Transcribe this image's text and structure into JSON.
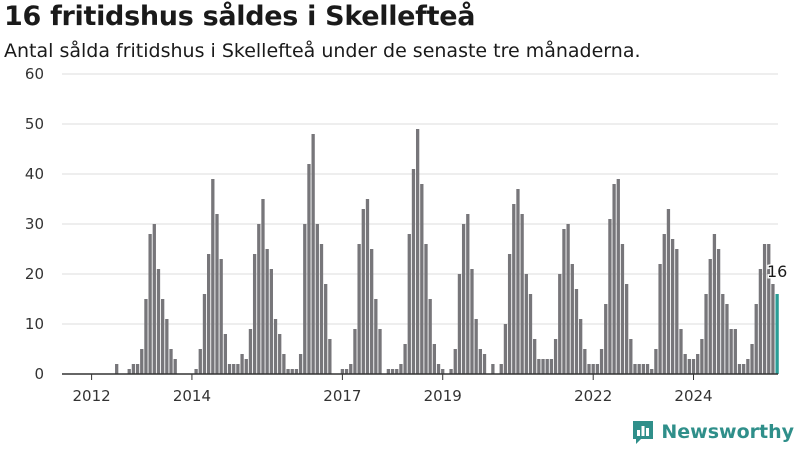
{
  "title": "16 fritidshus såldes i Skellefteå",
  "subtitle": "Antal sålda fritidshus i Skellefteå under de senaste tre månaderna.",
  "brand": {
    "name": "Newsworthy",
    "logo_icon": "bar-chart-logo-icon"
  },
  "colors": {
    "bar": "#77767a",
    "highlight": "#2a9d96",
    "brand": "#2f8f8a"
  },
  "chart_data": {
    "type": "bar",
    "x_start_month": "2012-01",
    "values": [
      0,
      0,
      0,
      0,
      0,
      0,
      2,
      0,
      0,
      1,
      2,
      2,
      5,
      15,
      28,
      30,
      21,
      15,
      11,
      5,
      3,
      0,
      0,
      0,
      0,
      1,
      5,
      16,
      24,
      39,
      32,
      23,
      8,
      2,
      2,
      2,
      4,
      3,
      9,
      24,
      30,
      35,
      25,
      21,
      11,
      8,
      4,
      1,
      1,
      1,
      4,
      30,
      42,
      48,
      30,
      26,
      18,
      7,
      0,
      0,
      1,
      1,
      2,
      9,
      26,
      33,
      35,
      25,
      15,
      9,
      0,
      1,
      1,
      1,
      2,
      6,
      28,
      41,
      49,
      38,
      26,
      15,
      6,
      2,
      1,
      0,
      1,
      5,
      20,
      30,
      32,
      21,
      11,
      5,
      4,
      0,
      2,
      0,
      2,
      10,
      24,
      34,
      37,
      32,
      20,
      16,
      7,
      3,
      3,
      3,
      3,
      7,
      20,
      29,
      30,
      22,
      17,
      11,
      5,
      2,
      2,
      2,
      5,
      14,
      31,
      38,
      39,
      26,
      18,
      7,
      2,
      2,
      2,
      2,
      1,
      5,
      22,
      28,
      33,
      27,
      25,
      9,
      4,
      3,
      3,
      4,
      7,
      16,
      23,
      28,
      25,
      16,
      14,
      9,
      9,
      2,
      2,
      3,
      6,
      14,
      21,
      26,
      26,
      18,
      16
    ],
    "highlight_last": true,
    "last_value_label": "16",
    "x_tick_labels": [
      "2012",
      "2014",
      "2017",
      "2019",
      "2022",
      "2024"
    ],
    "y_tick_labels": [
      "0",
      "10",
      "20",
      "30",
      "40",
      "50",
      "60"
    ],
    "ylim": [
      0,
      60
    ],
    "grid": true,
    "legend": "none"
  }
}
